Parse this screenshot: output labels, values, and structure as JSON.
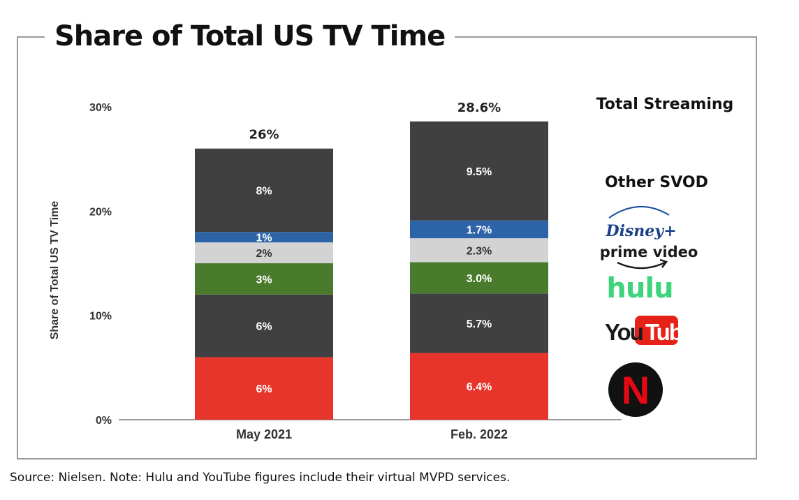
{
  "title": "Share of Total US TV Time",
  "source_note": "Source: Nielsen. Note: Hulu and YouTube figures include their virtual MVPD services.",
  "chart_data": {
    "type": "bar",
    "stacked": true,
    "ylabel": "Share of Total US TV Time",
    "ylim": [
      0,
      30
    ],
    "yticks": [
      "0%",
      "10%",
      "20%",
      "30%"
    ],
    "categories": [
      "May 2021",
      "Feb. 2022"
    ],
    "totals": [
      "26%",
      "28.6%"
    ],
    "series": [
      {
        "key": "netflix",
        "values": [
          6,
          6.4
        ],
        "labels": [
          "6%",
          "6.4%"
        ],
        "color": "#e8352b",
        "text_color": "#ffffff"
      },
      {
        "key": "youtube",
        "values": [
          6,
          5.7
        ],
        "labels": [
          "6%",
          "5.7%"
        ],
        "color": "#404040",
        "text_color": "#ffffff"
      },
      {
        "key": "hulu",
        "values": [
          3,
          3.0
        ],
        "labels": [
          "3%",
          "3.0%"
        ],
        "color": "#4a7a2c",
        "text_color": "#ffffff"
      },
      {
        "key": "prime-video",
        "values": [
          2,
          2.3
        ],
        "labels": [
          "2%",
          "2.3%"
        ],
        "color": "#d3d3d3",
        "text_color": "#333333"
      },
      {
        "key": "disney-plus",
        "values": [
          1,
          1.7
        ],
        "labels": [
          "1%",
          "1.7%"
        ],
        "color": "#2d64a8",
        "text_color": "#ffffff"
      },
      {
        "key": "other-svod",
        "values": [
          8,
          9.5
        ],
        "labels": [
          "8%",
          "9.5%"
        ],
        "color": "#404040",
        "text_color": "#ffffff"
      }
    ],
    "legend": {
      "header": "Total Streaming",
      "items": [
        {
          "key": "other-svod",
          "text": "Other SVOD"
        },
        {
          "key": "disney-plus",
          "text": "Disney+",
          "logo": "disney-plus-logo"
        },
        {
          "key": "prime-video",
          "text": "prime video",
          "logo": "prime-video-logo"
        },
        {
          "key": "hulu",
          "text": "hulu",
          "logo": "hulu-logo",
          "color": "#3dd47c"
        },
        {
          "key": "youtube",
          "text": "YouTube",
          "logo": "youtube-logo",
          "color": "#e62117"
        },
        {
          "key": "netflix",
          "text": "N",
          "logo": "netflix-logo",
          "color": "#e50914"
        }
      ]
    }
  }
}
